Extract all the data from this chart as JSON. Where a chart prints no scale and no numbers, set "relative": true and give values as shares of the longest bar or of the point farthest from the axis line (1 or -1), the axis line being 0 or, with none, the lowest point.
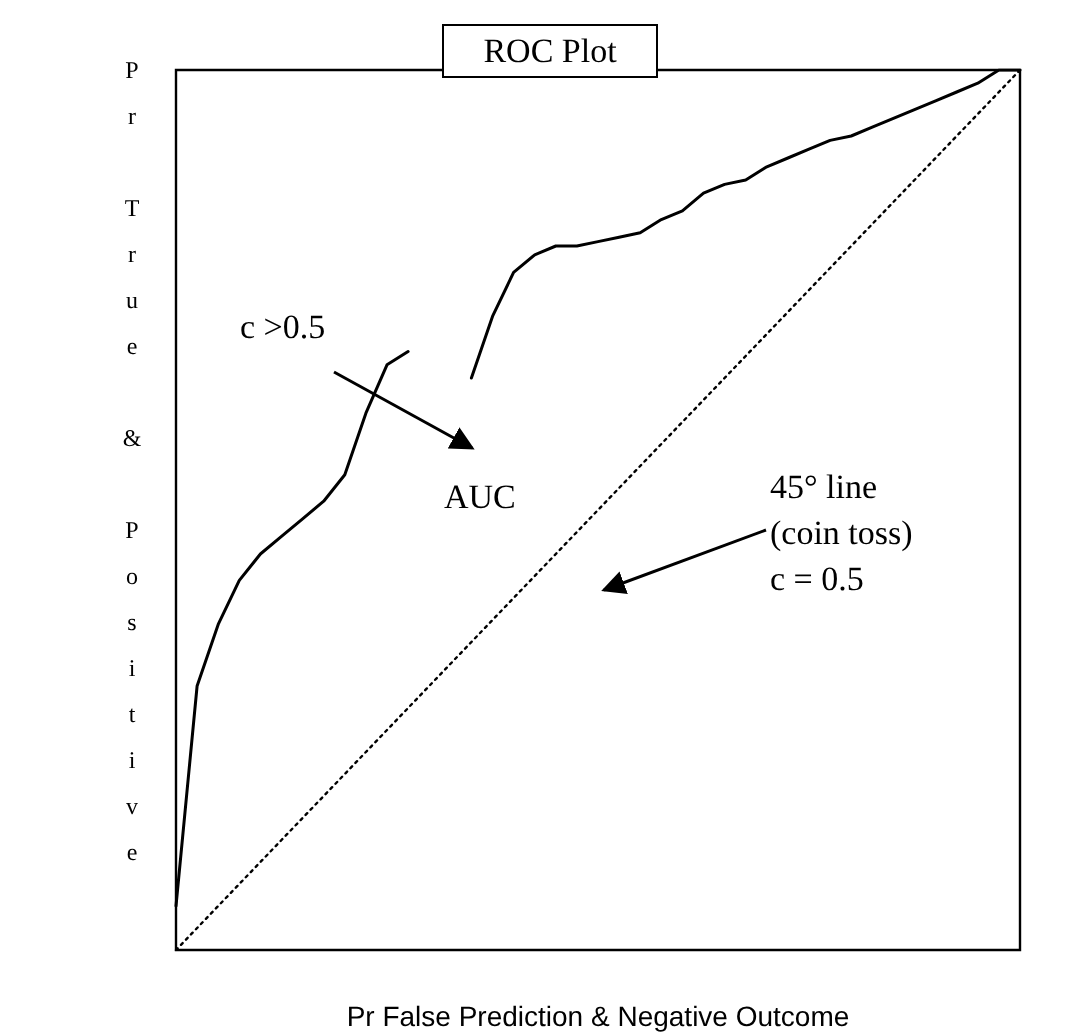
{
  "chart_data": {
    "type": "line",
    "title": "ROC Plot",
    "xlabel": "Pr False Prediction & Negative Outcome",
    "ylabel": "Pr True & Positive",
    "relative": true,
    "marker": "none",
    "categories": [
      null,
      null,
      null,
      null,
      null,
      null,
      null,
      null,
      null,
      null,
      null,
      null,
      null,
      null,
      null,
      null,
      null,
      null,
      null,
      null,
      null,
      null,
      null,
      null,
      null,
      null,
      null,
      null,
      null,
      null,
      null,
      null,
      null,
      null,
      null,
      null,
      null,
      null,
      null,
      null,
      null
    ],
    "series": [
      {
        "color": "#000000",
        "line_style": "solid",
        "values": [
          0.05,
          0.3,
          0.37,
          0.42,
          0.45,
          0.47,
          0.49,
          0.51,
          0.54,
          0.61,
          0.665,
          0.68,
          null,
          null,
          0.65,
          0.72,
          0.77,
          0.79,
          0.8,
          0.8,
          0.805,
          0.81,
          0.815,
          0.83,
          0.84,
          0.86,
          0.87,
          0.875,
          0.89,
          0.9,
          0.91,
          0.92,
          0.925,
          0.935,
          0.945,
          0.955,
          0.965,
          0.975,
          0.985,
          1,
          1
        ]
      },
      {
        "color": "#000000",
        "line_style": "dotted",
        "values": [
          0,
          0.025,
          0.05,
          0.075,
          0.1,
          0.125,
          0.15,
          0.175,
          0.2,
          0.225,
          0.25,
          0.275,
          0.3,
          0.325,
          0.35,
          0.375,
          0.4,
          0.425,
          0.45,
          0.475,
          0.5,
          0.525,
          0.55,
          0.575,
          0.6,
          0.625,
          0.65,
          0.675,
          0.7,
          0.725,
          0.75,
          0.775,
          0.8,
          0.825,
          0.85,
          0.875,
          0.9,
          0.925,
          0.95,
          0.975,
          1
        ]
      }
    ],
    "annotations": [
      "c >0.5",
      "AUC",
      "45° line\n(coin toss)\nc = 0.5"
    ]
  }
}
